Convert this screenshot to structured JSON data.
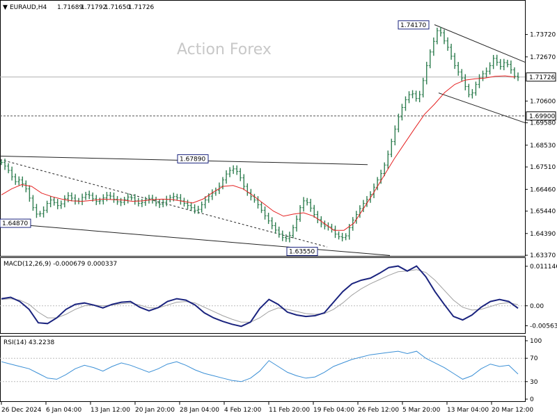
{
  "chart_data": {
    "type": "line",
    "header": {
      "arrow": "▼",
      "symbol": "EURAUD,H4",
      "open": "1.71689",
      "high": "1.71792",
      "low": "1.71650",
      "close": "1.71726"
    },
    "watermark": "Action Forex",
    "price_pane": {
      "ylim": [
        1.6334,
        1.7475
      ],
      "ticks": [
        "1.73720",
        "1.72670",
        "1.70600",
        "1.69580",
        "1.68530",
        "1.67510",
        "1.66460",
        "1.65440",
        "1.64390",
        "1.63370"
      ],
      "current_price": "1.71726",
      "support_level": "1.69900",
      "annotations": [
        "1.74170",
        "1.67890",
        "1.64870",
        "1.63550"
      ],
      "close_values": [
        1.6772,
        1.6755,
        1.6735,
        1.6705,
        1.6682,
        1.669,
        1.6672,
        1.6648,
        1.6605,
        1.656,
        1.653,
        1.6532,
        1.6548,
        1.658,
        1.6596,
        1.6584,
        1.657,
        1.6578,
        1.6602,
        1.6616,
        1.6605,
        1.6592,
        1.659,
        1.6608,
        1.6622,
        1.6618,
        1.6602,
        1.659,
        1.6592,
        1.6606,
        1.6618,
        1.6614,
        1.66,
        1.6588,
        1.6585,
        1.6598,
        1.661,
        1.6606,
        1.6592,
        1.658,
        1.6584,
        1.6596,
        1.6604,
        1.6596,
        1.6582,
        1.6576,
        1.6585,
        1.6598,
        1.6608,
        1.6612,
        1.6606,
        1.6592,
        1.658,
        1.657,
        1.656,
        1.6548,
        1.6552,
        1.6574,
        1.6596,
        1.6614,
        1.6628,
        1.6642,
        1.666,
        1.669,
        1.6718,
        1.6735,
        1.6742,
        1.673,
        1.67,
        1.666,
        1.663,
        1.6612,
        1.6596,
        1.6574,
        1.6548,
        1.6522,
        1.6498,
        1.6476,
        1.6455,
        1.6436,
        1.642,
        1.6415,
        1.643,
        1.6466,
        1.6506,
        1.656,
        1.6592,
        1.6584,
        1.6558,
        1.6528,
        1.6504,
        1.6484,
        1.6474,
        1.647,
        1.6458,
        1.6436,
        1.6424,
        1.642,
        1.6428,
        1.6466,
        1.6502,
        1.6528,
        1.6556,
        1.658,
        1.6598,
        1.6622,
        1.6656,
        1.669,
        1.672,
        1.676,
        1.681,
        1.687,
        1.6928,
        1.6986,
        1.703,
        1.7066,
        1.709,
        1.7094,
        1.7072,
        1.709,
        1.7156,
        1.7226,
        1.729,
        1.734,
        1.739,
        1.738,
        1.7342,
        1.7312,
        1.727,
        1.7226,
        1.7196,
        1.7168,
        1.7128,
        1.709,
        1.7098,
        1.7138,
        1.7168,
        1.7188,
        1.72,
        1.7226,
        1.726,
        1.7242,
        1.7222,
        1.724,
        1.7232,
        1.7206,
        1.7176,
        1.7172
      ],
      "ma_values": [
        1.662,
        1.6648,
        1.6668,
        1.666,
        1.6628,
        1.6612,
        1.66,
        1.6592,
        1.659,
        1.6594,
        1.66,
        1.6598,
        1.6596,
        1.659,
        1.6592,
        1.6598,
        1.66,
        1.6598,
        1.659,
        1.6582,
        1.66,
        1.6632,
        1.666,
        1.6664,
        1.6648,
        1.6616,
        1.658,
        1.6544,
        1.652,
        1.653,
        1.6536,
        1.652,
        1.6488,
        1.6454,
        1.6454,
        1.6488,
        1.656,
        1.6634,
        1.6712,
        1.679,
        1.686,
        1.693,
        1.6998,
        1.7046,
        1.71,
        1.7138,
        1.7158,
        1.7164,
        1.7168,
        1.7176,
        1.7178,
        1.7172
      ],
      "trendlines": {
        "upper_channel": [
          [
            1.6802,
            1.6762
          ]
        ],
        "lower_channel": [
          [
            1.6488,
            1.6336
          ]
        ],
        "falling_wedge_dash": [
          [
            1.6786,
            1.6376
          ]
        ],
        "recent_upper": [
          [
            1.7418,
            1.7242
          ]
        ],
        "recent_lower": [
          [
            1.7098,
            1.6958
          ]
        ]
      }
    },
    "macd_pane": {
      "label": "MACD(12,26,9) -0.000679 0.000337",
      "ylim": [
        -0.0075,
        0.0125
      ],
      "ticks": [
        "0.011146",
        "0.00",
        "-0.005639"
      ],
      "macd_values": [
        0.002,
        0.0024,
        0.0012,
        -0.001,
        -0.0048,
        -0.005,
        -0.0034,
        -0.001,
        0.0004,
        0.0008,
        0.0002,
        -0.0006,
        0.0004,
        0.001,
        0.0012,
        -0.0004,
        -0.0014,
        -0.0005,
        0.0012,
        0.002,
        0.0016,
        0.0002,
        -0.002,
        -0.0034,
        -0.0044,
        -0.0052,
        -0.0058,
        -0.0046,
        -0.0008,
        0.0018,
        0.0004,
        -0.0018,
        -0.0026,
        -0.003,
        -0.0028,
        -0.002,
        0.001,
        0.004,
        0.0062,
        0.0072,
        0.0078,
        0.0092,
        0.0108,
        0.0112,
        0.0098,
        0.0112,
        0.0082,
        0.004,
        0.0004,
        -0.003,
        -0.004,
        -0.0026,
        -0.0004,
        0.0012,
        0.0018,
        0.0012,
        -0.0007
      ],
      "signal_values": [
        0.0018,
        0.002,
        0.0016,
        0.0004,
        -0.0018,
        -0.0034,
        -0.0034,
        -0.0024,
        -0.001,
        0.0,
        0.0002,
        0.0,
        0.0002,
        0.0006,
        0.0008,
        0.0002,
        -0.0006,
        -0.0006,
        0.0002,
        0.001,
        0.0012,
        0.0008,
        -0.0004,
        -0.0016,
        -0.0028,
        -0.0038,
        -0.0046,
        -0.0046,
        -0.0034,
        -0.0016,
        -0.0006,
        -0.001,
        -0.0016,
        -0.0022,
        -0.0024,
        -0.0022,
        -0.001,
        0.0008,
        0.003,
        0.0048,
        0.0062,
        0.0074,
        0.0086,
        0.0096,
        0.0098,
        0.0102,
        0.0094,
        0.0072,
        0.0044,
        0.0016,
        -0.0004,
        -0.0012,
        -0.001,
        -0.0002,
        0.0006,
        0.0009,
        0.0003
      ]
    },
    "rsi_pane": {
      "label": "RSI(14) 43.2238",
      "ylim": [
        0,
        100
      ],
      "ticks": [
        "100",
        "70",
        "30",
        "0"
      ],
      "rsi_values": [
        64,
        60,
        56,
        52,
        44,
        36,
        34,
        42,
        52,
        58,
        54,
        48,
        56,
        62,
        58,
        52,
        46,
        52,
        60,
        64,
        58,
        50,
        44,
        40,
        36,
        32,
        30,
        36,
        48,
        66,
        56,
        46,
        40,
        36,
        38,
        46,
        56,
        62,
        68,
        72,
        76,
        78,
        80,
        82,
        78,
        82,
        70,
        62,
        54,
        44,
        34,
        40,
        52,
        60,
        56,
        58,
        43
      ]
    },
    "x_tick_labels": [
      "26 Dec 2024",
      "6 Jan 04:00",
      "13 Jan 12:00",
      "20 Jan 20:00",
      "28 Jan 04:00",
      "4 Feb 12:00",
      "11 Feb 20:00",
      "19 Feb 04:00",
      "26 Feb 12:00",
      "5 Mar 20:00",
      "13 Mar 04:00",
      "20 Mar 12:00"
    ],
    "colors": {
      "candles": "#2e7d4f",
      "ma": "#e52121",
      "macd": "#1a237e",
      "signal": "#a0a0a0",
      "rsi": "#3a8fd6",
      "annotation_border": "#1a237e",
      "grid": "#bcbcbc"
    }
  }
}
